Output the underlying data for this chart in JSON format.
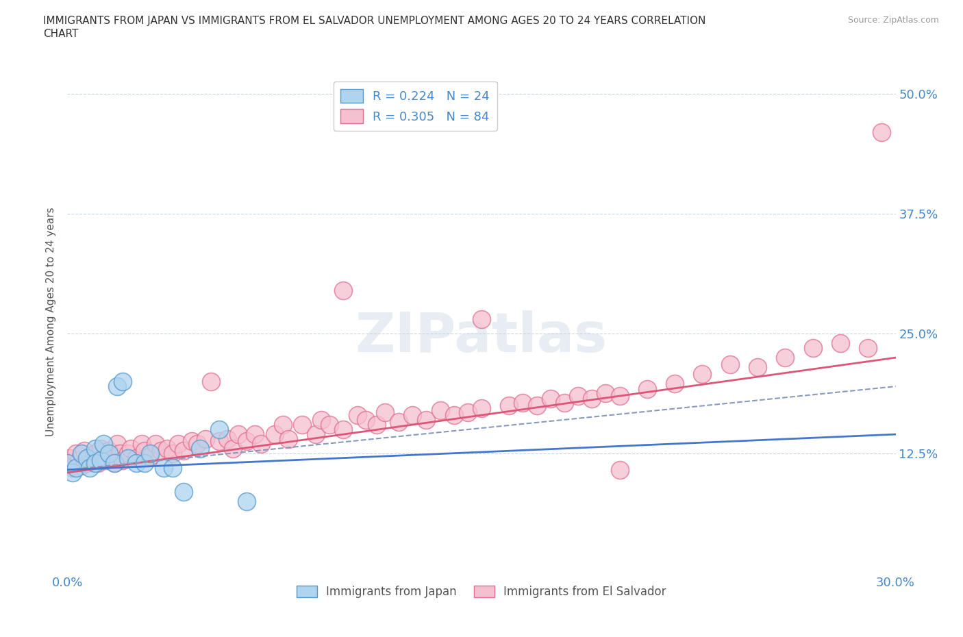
{
  "title_line1": "IMMIGRANTS FROM JAPAN VS IMMIGRANTS FROM EL SALVADOR UNEMPLOYMENT AMONG AGES 20 TO 24 YEARS CORRELATION",
  "title_line2": "CHART",
  "source": "Source: ZipAtlas.com",
  "ylabel": "Unemployment Among Ages 20 to 24 years",
  "xlim": [
    0.0,
    0.3
  ],
  "ylim": [
    0.0,
    0.525
  ],
  "yticks": [
    0.0,
    0.125,
    0.25,
    0.375,
    0.5
  ],
  "ytick_labels": [
    "",
    "12.5%",
    "25.0%",
    "37.5%",
    "50.0%"
  ],
  "xtick_positions": [
    0.0,
    0.05,
    0.1,
    0.15,
    0.2,
    0.25,
    0.3
  ],
  "xtick_labels": [
    "0.0%",
    "",
    "",
    "",
    "",
    "",
    "30.0%"
  ],
  "japan_color": "#aed4f0",
  "japan_edge_color": "#5599cc",
  "el_salvador_color": "#f5c0d0",
  "el_salvador_edge_color": "#e07090",
  "japan_R": 0.224,
  "japan_N": 24,
  "el_salvador_R": 0.305,
  "el_salvador_N": 84,
  "trend_color_japan": "#4477cc",
  "trend_color_salvador": "#dd5577",
  "trend_dashed_color": "#8899bb",
  "background_color": "#ffffff",
  "grid_color": "#c8d4e4",
  "axis_color": "#4488cc",
  "title_color": "#333333",
  "watermark": "ZIPatlas",
  "japan_x": [
    0.0,
    0.002,
    0.003,
    0.005,
    0.007,
    0.008,
    0.01,
    0.01,
    0.012,
    0.013,
    0.015,
    0.017,
    0.018,
    0.02,
    0.022,
    0.025,
    0.028,
    0.03,
    0.035,
    0.038,
    0.042,
    0.048,
    0.055,
    0.065
  ],
  "japan_y": [
    0.115,
    0.105,
    0.11,
    0.125,
    0.12,
    0.11,
    0.13,
    0.115,
    0.118,
    0.135,
    0.125,
    0.115,
    0.195,
    0.2,
    0.12,
    0.115,
    0.115,
    0.125,
    0.11,
    0.11,
    0.085,
    0.13,
    0.15,
    0.075
  ],
  "salvador_x": [
    0.0,
    0.001,
    0.002,
    0.003,
    0.004,
    0.005,
    0.006,
    0.007,
    0.008,
    0.009,
    0.01,
    0.011,
    0.012,
    0.013,
    0.014,
    0.015,
    0.017,
    0.018,
    0.019,
    0.02,
    0.022,
    0.023,
    0.025,
    0.027,
    0.028,
    0.03,
    0.032,
    0.034,
    0.036,
    0.038,
    0.04,
    0.042,
    0.045,
    0.047,
    0.05,
    0.052,
    0.055,
    0.058,
    0.06,
    0.062,
    0.065,
    0.068,
    0.07,
    0.075,
    0.078,
    0.08,
    0.085,
    0.09,
    0.092,
    0.095,
    0.1,
    0.105,
    0.108,
    0.112,
    0.115,
    0.12,
    0.125,
    0.13,
    0.135,
    0.14,
    0.145,
    0.15,
    0.16,
    0.165,
    0.17,
    0.175,
    0.18,
    0.185,
    0.19,
    0.195,
    0.2,
    0.21,
    0.22,
    0.23,
    0.24,
    0.25,
    0.26,
    0.27,
    0.28,
    0.29,
    0.295,
    0.1,
    0.15,
    0.2
  ],
  "salvador_y": [
    0.115,
    0.12,
    0.11,
    0.125,
    0.118,
    0.112,
    0.128,
    0.115,
    0.122,
    0.118,
    0.125,
    0.115,
    0.13,
    0.122,
    0.118,
    0.128,
    0.115,
    0.135,
    0.125,
    0.118,
    0.125,
    0.13,
    0.12,
    0.135,
    0.128,
    0.122,
    0.135,
    0.128,
    0.13,
    0.125,
    0.135,
    0.128,
    0.138,
    0.135,
    0.14,
    0.2,
    0.138,
    0.14,
    0.13,
    0.145,
    0.138,
    0.145,
    0.135,
    0.145,
    0.155,
    0.14,
    0.155,
    0.145,
    0.16,
    0.155,
    0.15,
    0.165,
    0.16,
    0.155,
    0.168,
    0.158,
    0.165,
    0.16,
    0.17,
    0.165,
    0.168,
    0.172,
    0.175,
    0.178,
    0.175,
    0.182,
    0.178,
    0.185,
    0.182,
    0.188,
    0.185,
    0.192,
    0.198,
    0.208,
    0.218,
    0.215,
    0.225,
    0.235,
    0.24,
    0.235,
    0.46,
    0.295,
    0.265,
    0.108
  ]
}
